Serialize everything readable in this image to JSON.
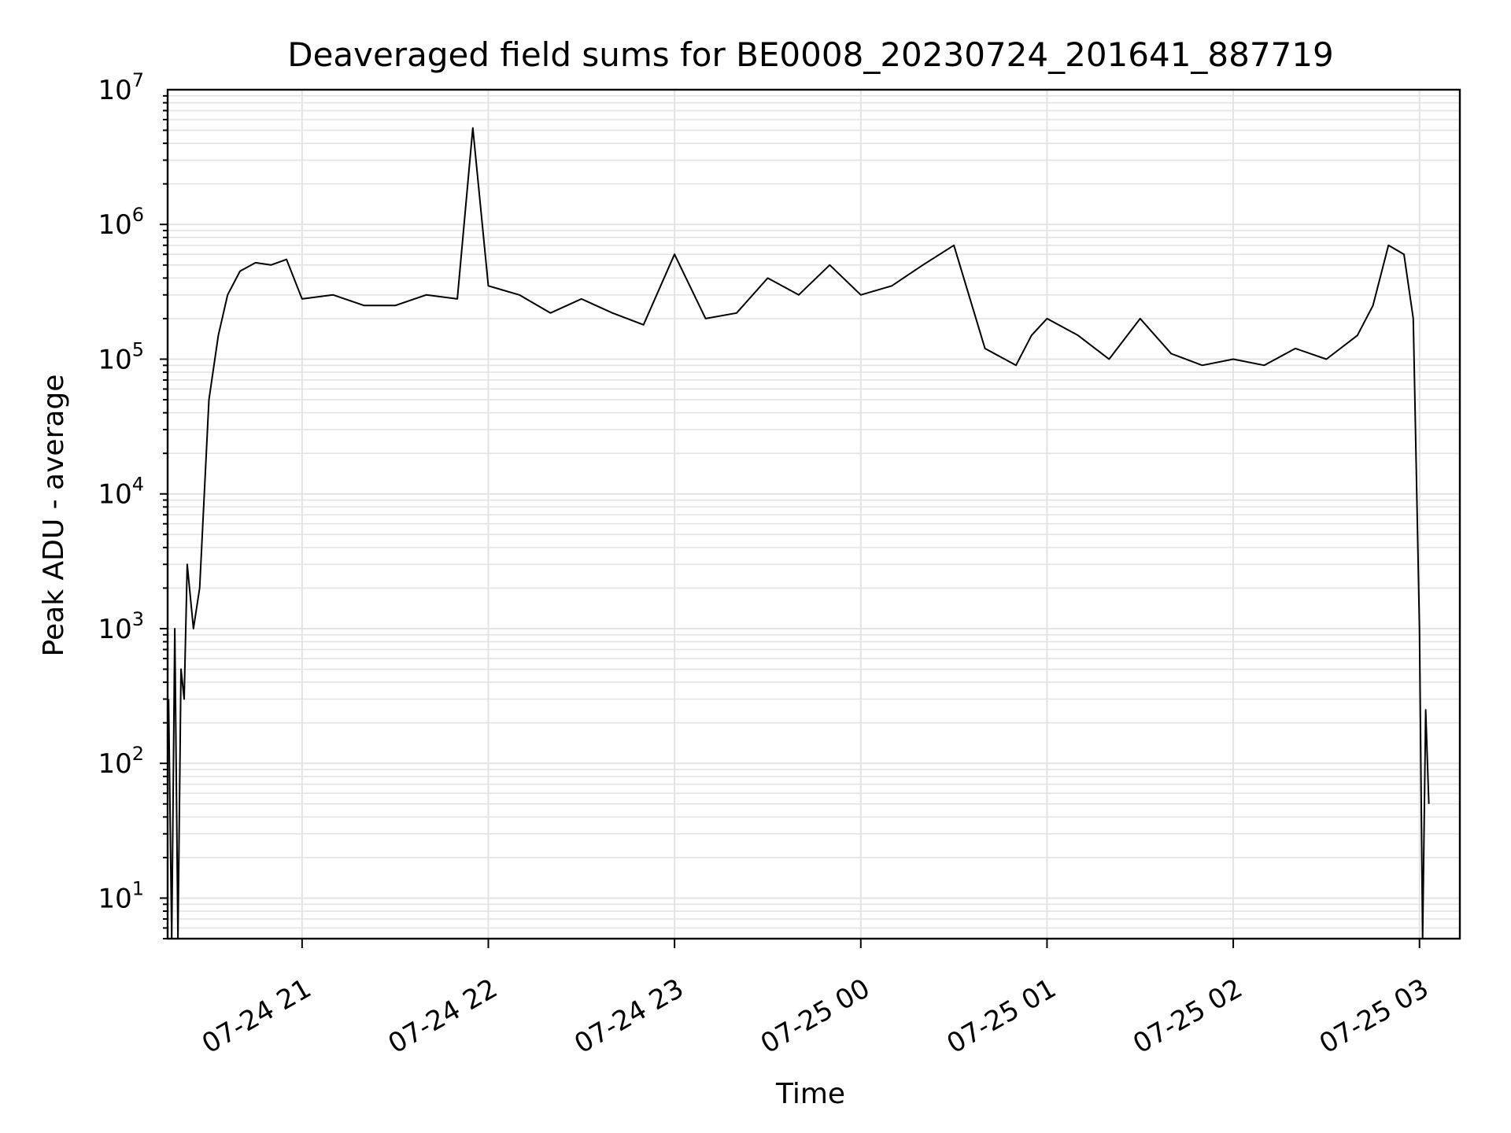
{
  "chart_data": {
    "type": "line",
    "title": "Deaveraged field sums for BE0008_20230724_201641_887719",
    "xlabel": "Time",
    "ylabel": "Peak ADU - average",
    "yscale": "log",
    "ylim": [
      5,
      10000000
    ],
    "xlim": [
      "2023-07-24 20:16:41",
      "2023-07-25 03:13:00"
    ],
    "grid": true,
    "x_tick_labels": [
      "07-24 21",
      "07-24 22",
      "07-24 23",
      "07-25 00",
      "07-25 01",
      "07-25 02",
      "07-25 03"
    ],
    "x_ticks": [
      "2023-07-24 21:00",
      "2023-07-24 22:00",
      "2023-07-24 23:00",
      "2023-07-25 00:00",
      "2023-07-25 01:00",
      "2023-07-25 02:00",
      "2023-07-25 03:00"
    ],
    "y_ticks": [
      10,
      100,
      1000,
      10000,
      100000,
      1000000,
      10000000
    ],
    "y_tick_exponents": [
      "1",
      "2",
      "3",
      "4",
      "5",
      "6",
      "7"
    ],
    "y_tick_base": "10",
    "series": [
      {
        "color": "#000000",
        "x": [
          "2023-07-24 20:17",
          "2023-07-24 20:18",
          "2023-07-24 20:19",
          "2023-07-24 20:20",
          "2023-07-24 20:21",
          "2023-07-24 20:22",
          "2023-07-24 20:23",
          "2023-07-24 20:25",
          "2023-07-24 20:27",
          "2023-07-24 20:30",
          "2023-07-24 20:33",
          "2023-07-24 20:36",
          "2023-07-24 20:40",
          "2023-07-24 20:45",
          "2023-07-24 20:50",
          "2023-07-24 20:55",
          "2023-07-24 21:00",
          "2023-07-24 21:10",
          "2023-07-24 21:20",
          "2023-07-24 21:30",
          "2023-07-24 21:40",
          "2023-07-24 21:50",
          "2023-07-24 21:55",
          "2023-07-24 22:00",
          "2023-07-24 22:10",
          "2023-07-24 22:20",
          "2023-07-24 22:30",
          "2023-07-24 22:40",
          "2023-07-24 22:50",
          "2023-07-24 23:00",
          "2023-07-24 23:10",
          "2023-07-24 23:20",
          "2023-07-24 23:30",
          "2023-07-24 23:40",
          "2023-07-24 23:50",
          "2023-07-25 00:00",
          "2023-07-25 00:10",
          "2023-07-25 00:20",
          "2023-07-25 00:30",
          "2023-07-25 00:40",
          "2023-07-25 00:50",
          "2023-07-25 00:55",
          "2023-07-25 01:00",
          "2023-07-25 01:10",
          "2023-07-25 01:20",
          "2023-07-25 01:30",
          "2023-07-25 01:40",
          "2023-07-25 01:50",
          "2023-07-25 02:00",
          "2023-07-25 02:10",
          "2023-07-25 02:20",
          "2023-07-25 02:30",
          "2023-07-25 02:40",
          "2023-07-25 02:45",
          "2023-07-25 02:50",
          "2023-07-25 02:55",
          "2023-07-25 02:58",
          "2023-07-25 03:00",
          "2023-07-25 03:01",
          "2023-07-25 03:02",
          "2023-07-25 03:03"
        ],
        "y": [
          300,
          5,
          1000,
          5,
          500,
          300,
          3000,
          1000,
          2000,
          50000,
          150000,
          300000,
          450000,
          520000,
          500000,
          550000,
          280000,
          300000,
          250000,
          250000,
          300000,
          280000,
          5200000,
          350000,
          300000,
          220000,
          280000,
          220000,
          180000,
          600000,
          200000,
          220000,
          400000,
          300000,
          500000,
          300000,
          350000,
          500000,
          700000,
          120000,
          90000,
          150000,
          200000,
          150000,
          100000,
          200000,
          110000,
          90000,
          100000,
          90000,
          120000,
          100000,
          150000,
          250000,
          700000,
          600000,
          200000,
          1000,
          5,
          250,
          50
        ]
      }
    ]
  }
}
